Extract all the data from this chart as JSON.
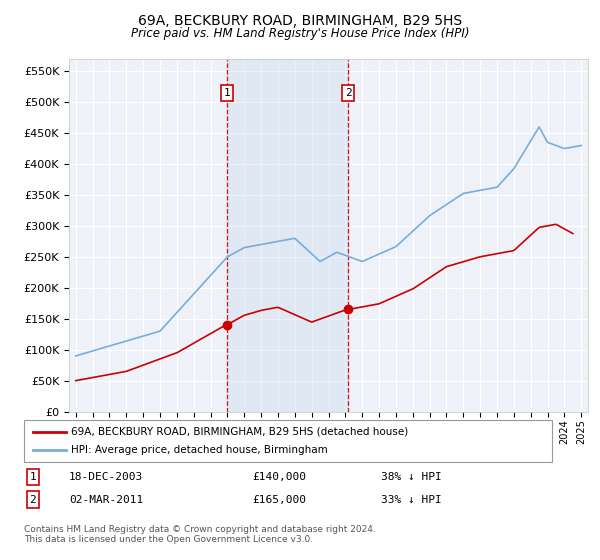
{
  "title": "69A, BECKBURY ROAD, BIRMINGHAM, B29 5HS",
  "subtitle": "Price paid vs. HM Land Registry's House Price Index (HPI)",
  "ylabel_ticks": [
    "£0",
    "£50K",
    "£100K",
    "£150K",
    "£200K",
    "£250K",
    "£300K",
    "£350K",
    "£400K",
    "£450K",
    "£500K",
    "£550K"
  ],
  "ytick_values": [
    0,
    50000,
    100000,
    150000,
    200000,
    250000,
    300000,
    350000,
    400000,
    450000,
    500000,
    550000
  ],
  "ylim": [
    0,
    570000
  ],
  "xlim_start": 1994.6,
  "xlim_end": 2025.4,
  "sale1_x": 2003.96,
  "sale1_y": 140000,
  "sale2_x": 2011.17,
  "sale2_y": 165000,
  "sale1_label": "18-DEC-2003",
  "sale2_label": "02-MAR-2011",
  "sale1_price": "£140,000",
  "sale2_price": "£165,000",
  "sale1_hpi": "38% ↓ HPI",
  "sale2_hpi": "33% ↓ HPI",
  "legend_line1": "69A, BECKBURY ROAD, BIRMINGHAM, B29 5HS (detached house)",
  "legend_line2": "HPI: Average price, detached house, Birmingham",
  "footnote": "Contains HM Land Registry data © Crown copyright and database right 2024.\nThis data is licensed under the Open Government Licence v3.0.",
  "line_color_red": "#cc0000",
  "line_color_blue": "#7aacda",
  "vline_color": "#cc0000",
  "background_color": "#ffffff",
  "plot_bg_color": "#eef2f8",
  "grid_color": "#ffffff",
  "box_color": "#cc0000",
  "span_color": "#c8d8ee"
}
